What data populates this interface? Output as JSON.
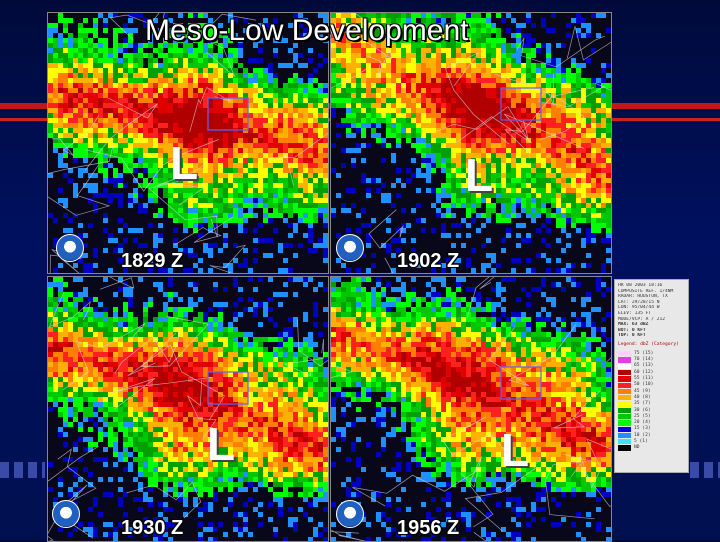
{
  "slide": {
    "title": "Meso-Low Development"
  },
  "panels": [
    {
      "time": "1829 Z",
      "low_marker": "L"
    },
    {
      "time": "1902 Z",
      "low_marker": "L"
    },
    {
      "time": "1930 Z",
      "low_marker": "L"
    },
    {
      "time": "1956 Z",
      "low_marker": "L"
    }
  ],
  "colors": {
    "background": "#00104f",
    "stripe": "#c01818"
  },
  "legend": {
    "header_lines": [
      "HR 08 2003  18:16",
      "COMPOSITE REF. 1/4NM",
      "RADAR: HOUSTON, TX",
      "LAT: 29/28/15 N",
      "LON: 95/04/44 W",
      "ELEV: 135 FT",
      "MODE/VCP: A / 212",
      "MAX: 63 dBZ",
      "BOT: 0 KFT",
      "TOP: 0 KFT"
    ],
    "title": "Legend: dbZ (Category)",
    "entries": [
      {
        "label": "75  (15)",
        "color": "#ffd0ff"
      },
      {
        "label": "70  (14)",
        "color": "#e040e0"
      },
      {
        "label": "65  (13)",
        "color": "#ffffff"
      },
      {
        "label": "60  (12)",
        "color": "#b00000"
      },
      {
        "label": "55  (11)",
        "color": "#e00000"
      },
      {
        "label": "50  (10)",
        "color": "#ff2020"
      },
      {
        "label": "45  (9)",
        "color": "#ff8000"
      },
      {
        "label": "40  (8)",
        "color": "#ffb000"
      },
      {
        "label": "35  (7)",
        "color": "#ffff00"
      },
      {
        "label": "30  (6)",
        "color": "#00a000"
      },
      {
        "label": "25  (5)",
        "color": "#00c800"
      },
      {
        "label": "20  (4)",
        "color": "#00ff00"
      },
      {
        "label": "15  (3)",
        "color": "#0000e0"
      },
      {
        "label": "10  (2)",
        "color": "#1e90ff"
      },
      {
        "label": "5  (1)",
        "color": "#40e0ff"
      },
      {
        "label": "ND",
        "color": "#000000"
      }
    ]
  }
}
